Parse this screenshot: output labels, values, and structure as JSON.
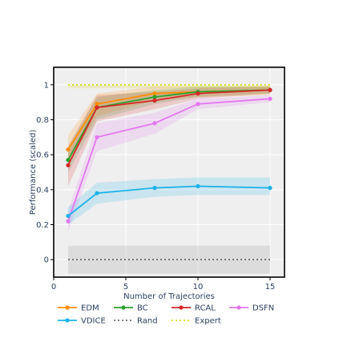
{
  "chart_data": {
    "type": "line",
    "title": "",
    "xlabel": "Number of Trajectories",
    "ylabel": "Performance (scaled)",
    "xlim": [
      0,
      16
    ],
    "ylim": [
      -0.1,
      1.1
    ],
    "xticks": [
      0,
      5,
      10,
      15
    ],
    "xtick_labels": [
      "0",
      "5",
      "10",
      "15"
    ],
    "yticks": [
      0,
      0.2,
      0.4,
      0.6,
      0.8,
      1
    ],
    "ytick_labels": [
      "0",
      "0.2",
      "0.4",
      "0.6",
      "0.8",
      "1"
    ],
    "grid": true,
    "legend_position": "bottom",
    "x": [
      1,
      3,
      7,
      10,
      15
    ],
    "series": [
      {
        "name": "EDM",
        "color": "#ff8c00",
        "style": "solid",
        "values": [
          0.63,
          0.89,
          0.95,
          0.96,
          0.97
        ],
        "band_low": [
          0.55,
          0.82,
          0.91,
          0.93,
          0.94
        ],
        "band_high": [
          0.71,
          0.95,
          0.99,
          0.99,
          0.99
        ]
      },
      {
        "name": "BC",
        "color": "#2ca02c",
        "style": "solid",
        "values": [
          0.57,
          0.87,
          0.93,
          0.96,
          0.97
        ],
        "band_low": [
          0.5,
          0.8,
          0.89,
          0.93,
          0.95
        ],
        "band_high": [
          0.64,
          0.93,
          0.97,
          0.99,
          0.99
        ]
      },
      {
        "name": "RCAL",
        "color": "#d62728",
        "style": "solid",
        "values": [
          0.54,
          0.87,
          0.91,
          0.95,
          0.97
        ],
        "band_low": [
          0.42,
          0.79,
          0.86,
          0.92,
          0.95
        ],
        "band_high": [
          0.65,
          0.94,
          0.96,
          0.98,
          0.99
        ]
      },
      {
        "name": "DSFN",
        "color": "#e377f0",
        "style": "solid",
        "values": [
          0.22,
          0.7,
          0.78,
          0.89,
          0.92
        ],
        "band_low": [
          0.16,
          0.62,
          0.72,
          0.86,
          0.9
        ],
        "band_high": [
          0.28,
          0.78,
          0.84,
          0.92,
          0.94
        ]
      },
      {
        "name": "VDICE",
        "color": "#1ab2e8",
        "style": "solid",
        "values": [
          0.25,
          0.38,
          0.41,
          0.42,
          0.41
        ],
        "band_low": [
          0.2,
          0.32,
          0.36,
          0.37,
          0.37
        ],
        "band_high": [
          0.3,
          0.44,
          0.46,
          0.47,
          0.47
        ]
      },
      {
        "name": "Rand",
        "color": "#555555",
        "style": "dot",
        "values": [
          0,
          0,
          0,
          0,
          0
        ],
        "band_low": [
          -0.08,
          -0.08,
          -0.08,
          -0.08,
          -0.08
        ],
        "band_high": [
          0.08,
          0.08,
          0.08,
          0.08,
          0.08
        ]
      },
      {
        "name": "Expert",
        "color": "#d4d400",
        "style": "dot",
        "values": [
          1,
          1,
          1,
          1,
          1
        ],
        "band_low": [
          0.98,
          0.98,
          0.98,
          0.98,
          0.98
        ],
        "band_high": [
          1.0,
          1.0,
          1.0,
          1.0,
          1.0
        ]
      }
    ],
    "legend_order": [
      "EDM",
      "BC",
      "RCAL",
      "DSFN",
      "VDICE",
      "Rand",
      "Expert"
    ]
  }
}
